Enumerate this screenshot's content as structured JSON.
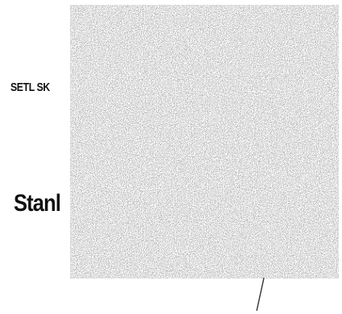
{
  "labels": {
    "top_label": "SETL SK",
    "bottom_label": "Stanl"
  },
  "colors": {
    "background": "#ffffff",
    "text": "#111111",
    "noise_light": "#efefef",
    "noise_dark": "#2a2a2a",
    "line": "#333333"
  }
}
